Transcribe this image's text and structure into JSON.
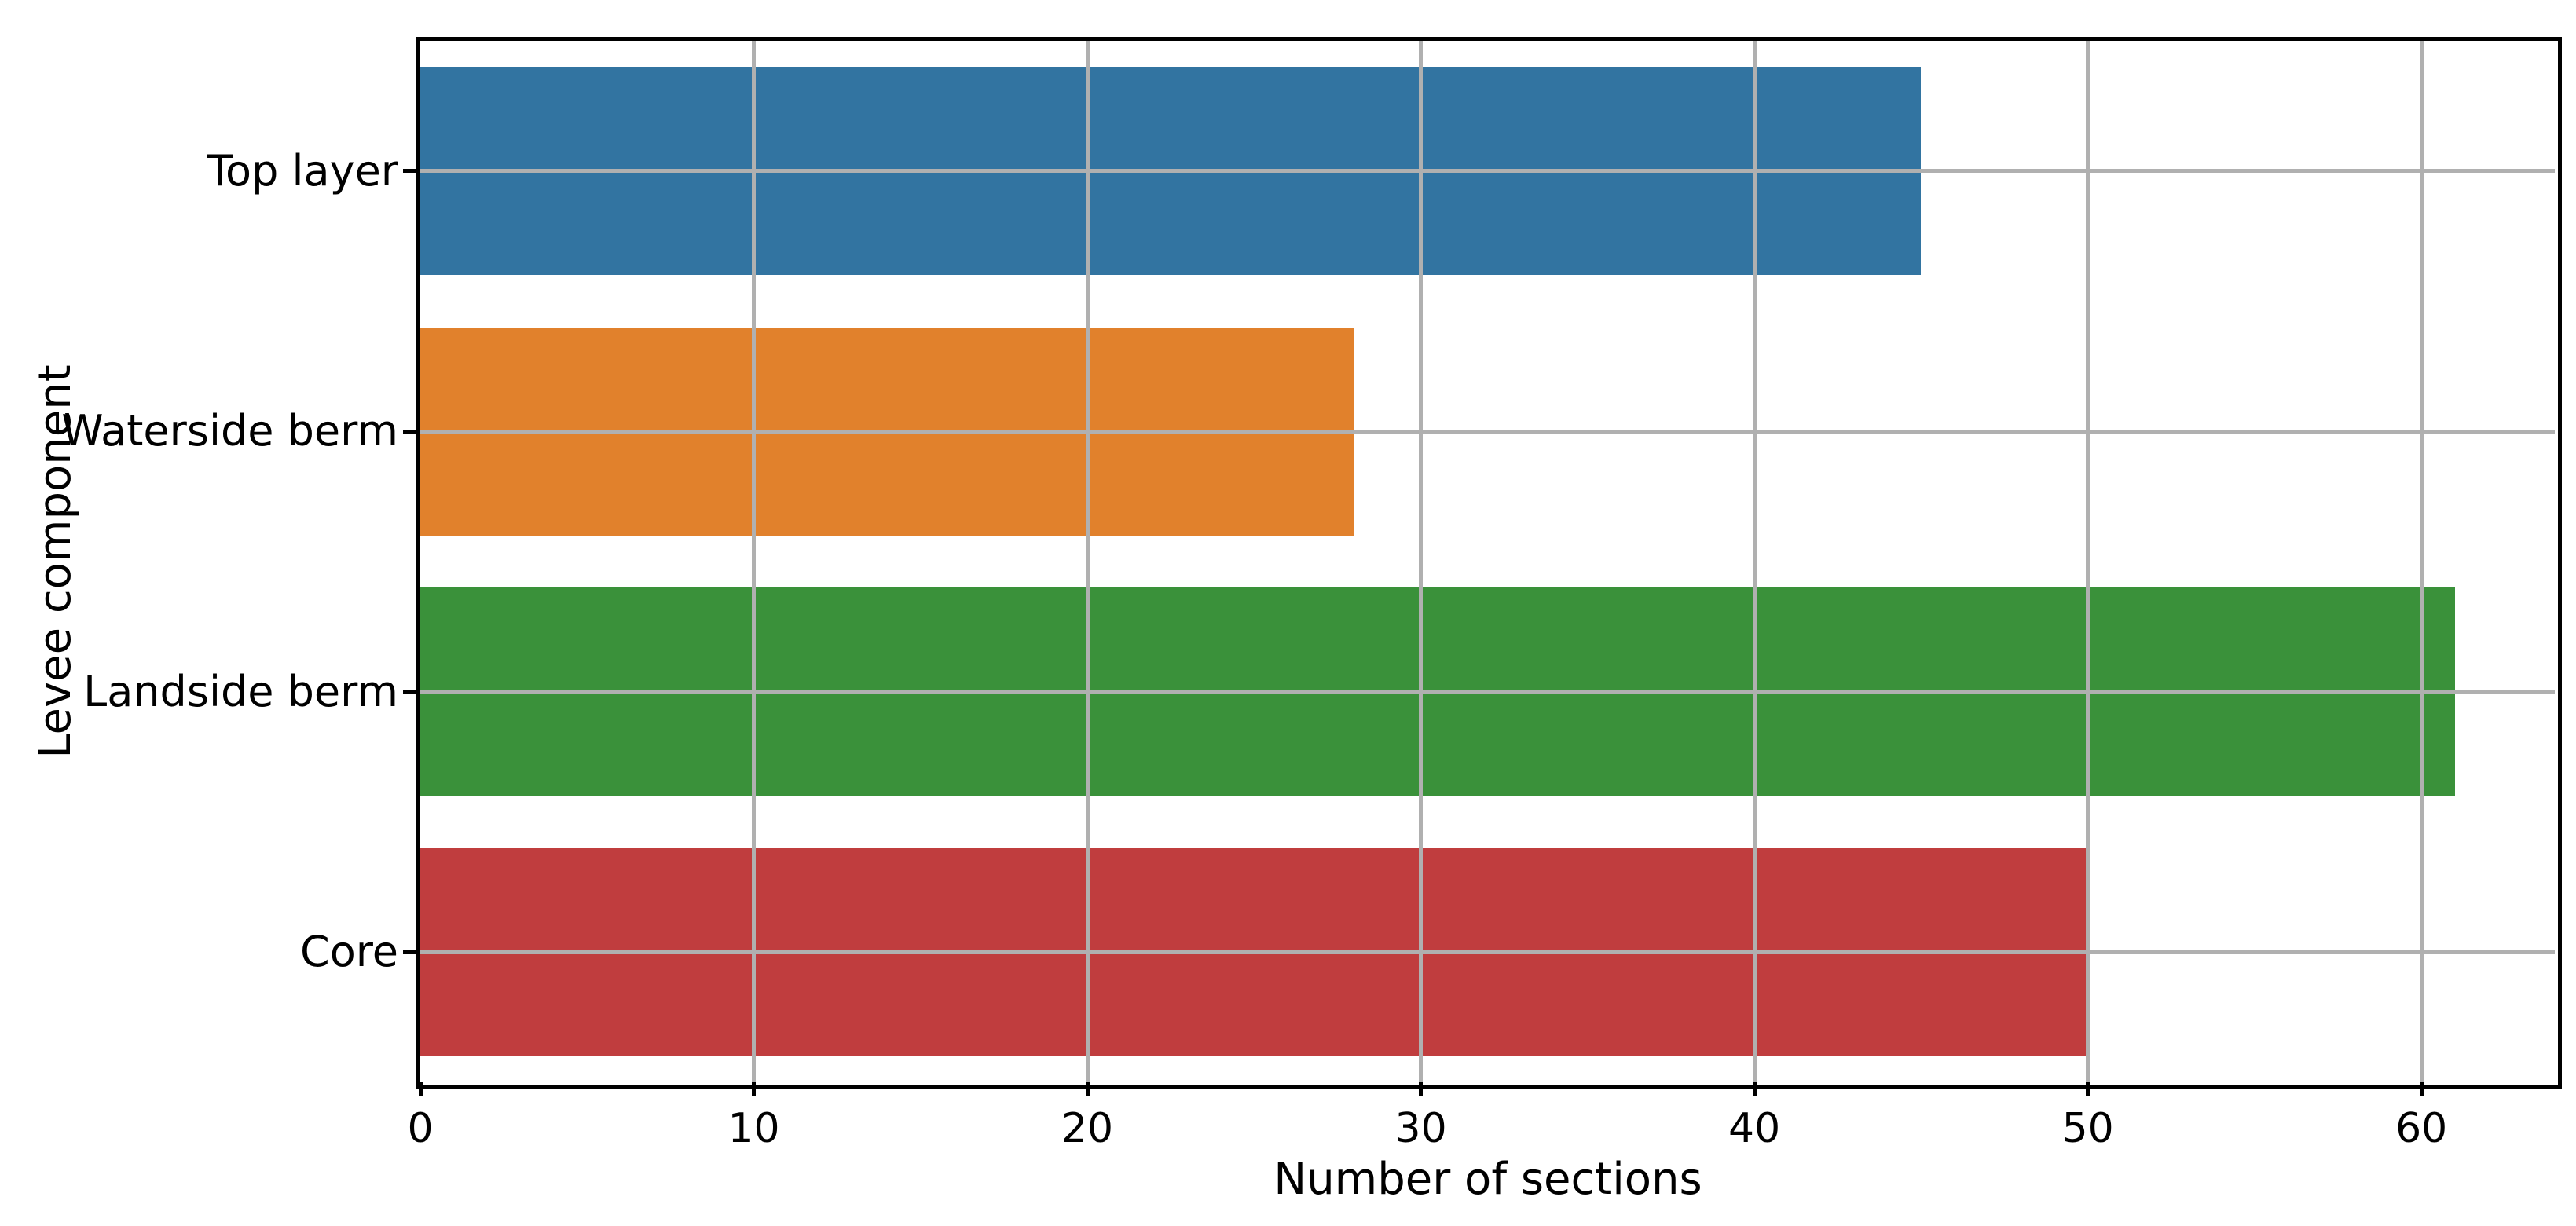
{
  "page": {
    "background_color": "#ffffff",
    "text_color": "#000000"
  },
  "chart_data": {
    "type": "bar",
    "orientation": "horizontal",
    "title": "",
    "xlabel": "Number of sections",
    "ylabel": "Levee component",
    "categories": [
      "Top layer",
      "Waterside berm",
      "Landside berm",
      "Core"
    ],
    "values": [
      45,
      28,
      61,
      50
    ],
    "bar_colors": [
      "#3274a1",
      "#e1812c",
      "#3a913a",
      "#c03d3e"
    ],
    "xticks": [
      0,
      10,
      20,
      30,
      40,
      50,
      60
    ],
    "xtick_labels": [
      "0",
      "10",
      "20",
      "30",
      "40",
      "50",
      "60"
    ],
    "xlim": [
      0,
      64
    ],
    "grid": true,
    "grid_color": "#b0b0b0",
    "spine_color": "#000000",
    "tick_color": "#000000",
    "legend": null
  }
}
